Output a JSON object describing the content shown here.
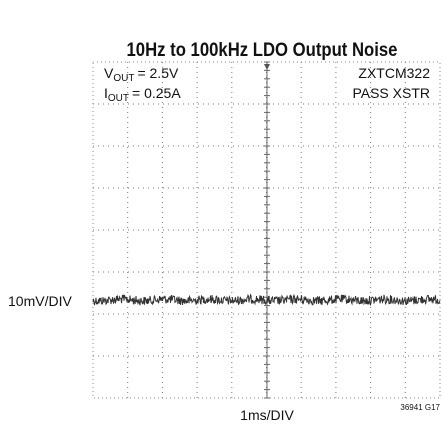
{
  "header": {
    "title": "10Hz to 100kHz LDO Output Noise"
  },
  "labels": {
    "v_out": {
      "symbol": "V",
      "subscript": "OUT",
      "value": "= 2.5V"
    },
    "i_out": {
      "symbol": "I",
      "subscript": "OUT",
      "value": "= 0.25A"
    },
    "device": "ZXTCM322",
    "device_note": "PASS XSTR",
    "vertical_scale": "10mV/DIV",
    "horizontal_scale": "1ms/DIV",
    "figure_id": "36941 G17"
  }
}
